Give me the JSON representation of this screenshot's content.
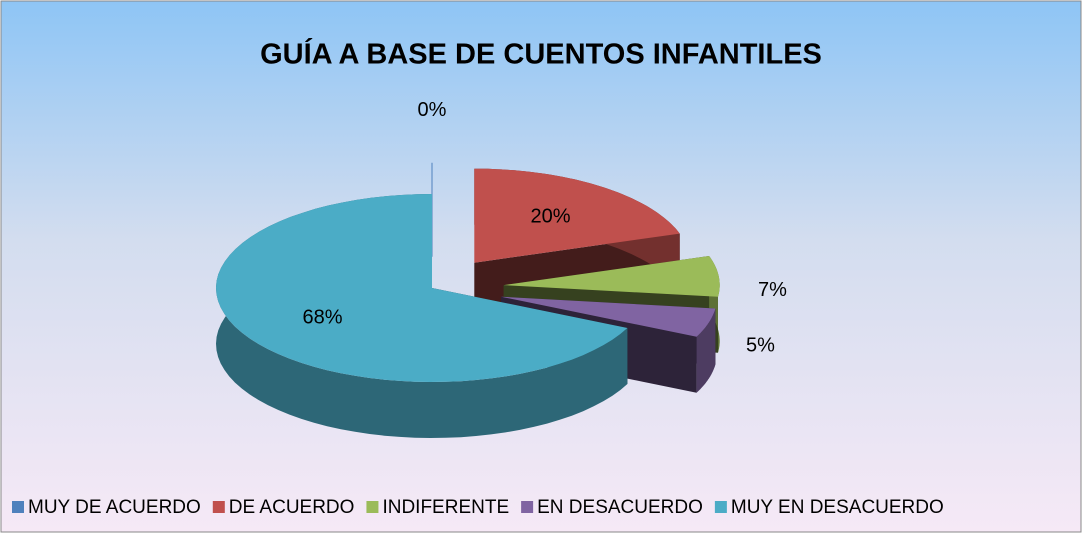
{
  "chart_data": {
    "type": "pie",
    "title": "GUÍA A BASE DE CUENTOS INFANTILES",
    "categories": [
      "MUY DE ACUERDO",
      "DE ACUERDO",
      "INDIFERENTE",
      "EN DESACUERDO",
      "MUY EN DESACUERDO"
    ],
    "values": [
      0,
      20,
      7,
      5,
      68
    ],
    "value_labels": [
      "0%",
      "20%",
      "7%",
      "5%",
      "68%"
    ],
    "colors": [
      "#4f81bd",
      "#c0504d",
      "#9bbb59",
      "#8064a2",
      "#4bacc6"
    ],
    "legend": "bottom"
  }
}
